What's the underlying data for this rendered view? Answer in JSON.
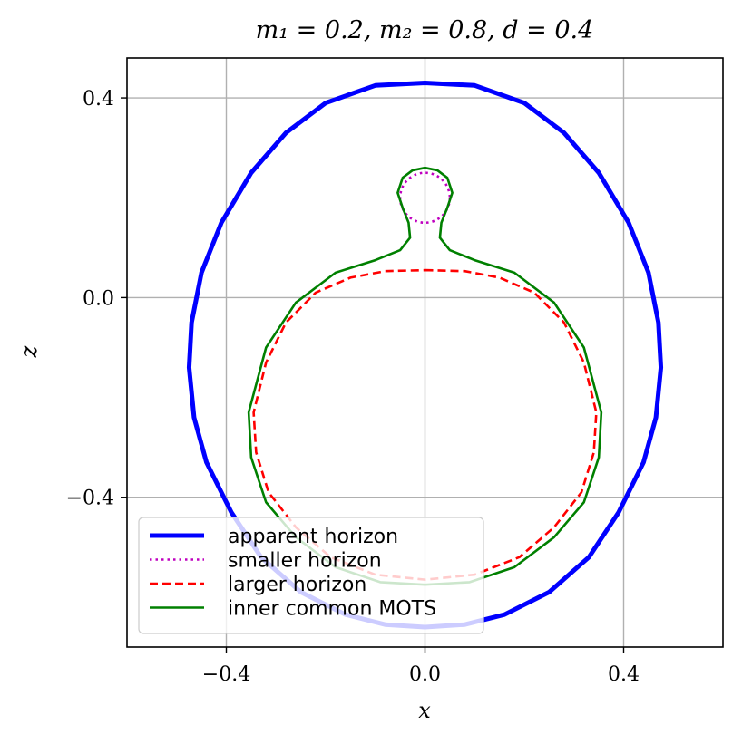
{
  "chart_data": {
    "type": "line",
    "title": "m₁ = 0.2, m₂ = 0.8, d = 0.4",
    "xlabel": "x",
    "ylabel": "z",
    "xlim": [
      -0.6,
      0.6
    ],
    "ylim": [
      -0.7,
      0.48
    ],
    "xticks": [
      -0.4,
      0.0,
      0.4
    ],
    "yticks": [
      -0.4,
      0.0,
      0.4
    ],
    "xtick_labels": [
      "−0.4",
      "0.0",
      "0.4"
    ],
    "ytick_labels": [
      "−0.4",
      "0.0",
      "0.4"
    ],
    "grid": true,
    "legend_position": "lower-left",
    "series": [
      {
        "name": "apparent horizon",
        "color": "#0000ff",
        "style": "solid",
        "points": [
          [
            0,
            0.43
          ],
          [
            0.1,
            0.425
          ],
          [
            0.2,
            0.39
          ],
          [
            0.28,
            0.33
          ],
          [
            0.35,
            0.25
          ],
          [
            0.41,
            0.15
          ],
          [
            0.45,
            0.05
          ],
          [
            0.47,
            -0.05
          ],
          [
            0.475,
            -0.14
          ],
          [
            0.465,
            -0.24
          ],
          [
            0.44,
            -0.33
          ],
          [
            0.39,
            -0.43
          ],
          [
            0.33,
            -0.52
          ],
          [
            0.25,
            -0.59
          ],
          [
            0.16,
            -0.635
          ],
          [
            0.08,
            -0.655
          ],
          [
            0,
            -0.66
          ],
          [
            -0.08,
            -0.655
          ],
          [
            -0.16,
            -0.635
          ],
          [
            -0.25,
            -0.59
          ],
          [
            -0.33,
            -0.52
          ],
          [
            -0.39,
            -0.43
          ],
          [
            -0.44,
            -0.33
          ],
          [
            -0.465,
            -0.24
          ],
          [
            -0.475,
            -0.14
          ],
          [
            -0.47,
            -0.05
          ],
          [
            -0.45,
            0.05
          ],
          [
            -0.41,
            0.15
          ],
          [
            -0.35,
            0.25
          ],
          [
            -0.28,
            0.33
          ],
          [
            -0.2,
            0.39
          ],
          [
            -0.1,
            0.425
          ],
          [
            0,
            0.43
          ]
        ]
      },
      {
        "name": "smaller horizon",
        "color": "#bf00bf",
        "style": "dotted",
        "center": [
          0,
          0.2
        ],
        "radius": 0.05
      },
      {
        "name": "larger horizon",
        "color": "#ff0000",
        "style": "dashed",
        "points": [
          [
            0,
            0.055
          ],
          [
            0.08,
            0.053
          ],
          [
            0.15,
            0.04
          ],
          [
            0.22,
            0.01
          ],
          [
            0.28,
            -0.05
          ],
          [
            0.32,
            -0.13
          ],
          [
            0.345,
            -0.23
          ],
          [
            0.34,
            -0.31
          ],
          [
            0.315,
            -0.39
          ],
          [
            0.26,
            -0.46
          ],
          [
            0.19,
            -0.52
          ],
          [
            0.1,
            -0.555
          ],
          [
            0,
            -0.565
          ],
          [
            -0.1,
            -0.555
          ],
          [
            -0.19,
            -0.52
          ],
          [
            -0.26,
            -0.46
          ],
          [
            -0.315,
            -0.39
          ],
          [
            -0.34,
            -0.31
          ],
          [
            -0.345,
            -0.23
          ],
          [
            -0.32,
            -0.13
          ],
          [
            -0.28,
            -0.05
          ],
          [
            -0.22,
            0.01
          ],
          [
            -0.15,
            0.04
          ],
          [
            -0.08,
            0.053
          ],
          [
            0,
            0.055
          ]
        ]
      },
      {
        "name": "inner common MOTS",
        "color": "#008000",
        "style": "solid",
        "points": [
          [
            0,
            0.26
          ],
          [
            0.025,
            0.255
          ],
          [
            0.045,
            0.24
          ],
          [
            0.055,
            0.21
          ],
          [
            0.045,
            0.18
          ],
          [
            0.033,
            0.15
          ],
          [
            0.03,
            0.12
          ],
          [
            0.05,
            0.095
          ],
          [
            0.1,
            0.075
          ],
          [
            0.18,
            0.05
          ],
          [
            0.26,
            -0.01
          ],
          [
            0.32,
            -0.1
          ],
          [
            0.355,
            -0.23
          ],
          [
            0.35,
            -0.32
          ],
          [
            0.32,
            -0.41
          ],
          [
            0.26,
            -0.48
          ],
          [
            0.18,
            -0.54
          ],
          [
            0.09,
            -0.57
          ],
          [
            0,
            -0.575
          ],
          [
            -0.09,
            -0.57
          ],
          [
            -0.18,
            -0.54
          ],
          [
            -0.26,
            -0.48
          ],
          [
            -0.32,
            -0.41
          ],
          [
            -0.35,
            -0.32
          ],
          [
            -0.355,
            -0.23
          ],
          [
            -0.32,
            -0.1
          ],
          [
            -0.26,
            -0.01
          ],
          [
            -0.18,
            0.05
          ],
          [
            -0.1,
            0.075
          ],
          [
            -0.05,
            0.095
          ],
          [
            -0.03,
            0.12
          ],
          [
            -0.033,
            0.15
          ],
          [
            -0.045,
            0.18
          ],
          [
            -0.055,
            0.21
          ],
          [
            -0.045,
            0.24
          ],
          [
            -0.025,
            0.255
          ],
          [
            0,
            0.26
          ]
        ]
      }
    ]
  }
}
